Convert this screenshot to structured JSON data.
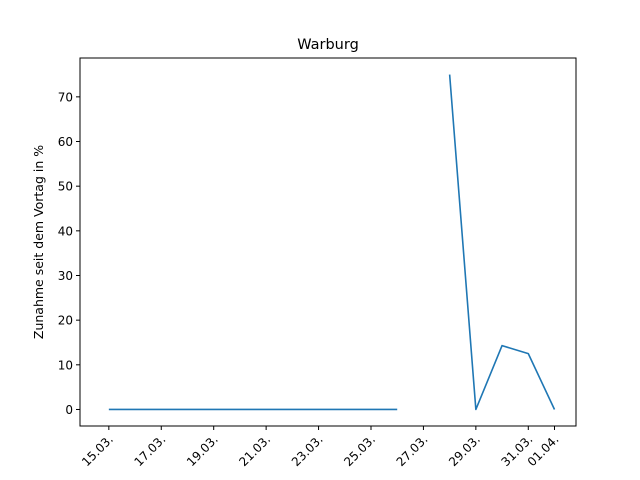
{
  "chart_data": {
    "type": "line",
    "title": "Warburg",
    "xlabel": "",
    "ylabel": "Zunahme seit dem Vortag in %",
    "x_ticks": [
      "15.03.",
      "17.03.",
      "19.03.",
      "21.03.",
      "23.03.",
      "25.03.",
      "27.03.",
      "29.03.",
      "31.03.",
      "01.04."
    ],
    "y_ticks": [
      0,
      10,
      20,
      30,
      40,
      50,
      60,
      70
    ],
    "ylim": [
      -3.7,
      78.7
    ],
    "xlim": [
      "14.03.",
      "01.04."
    ],
    "grid": false,
    "series": [
      {
        "color": "#1f77b4",
        "points": [
          {
            "x": "15.03.",
            "y": 0
          },
          {
            "x": "16.03.",
            "y": 0
          },
          {
            "x": "17.03.",
            "y": 0
          },
          {
            "x": "18.03.",
            "y": 0
          },
          {
            "x": "19.03.",
            "y": 0
          },
          {
            "x": "20.03.",
            "y": 0
          },
          {
            "x": "21.03.",
            "y": 0
          },
          {
            "x": "22.03.",
            "y": 0
          },
          {
            "x": "23.03.",
            "y": 0
          },
          {
            "x": "24.03.",
            "y": 0
          },
          {
            "x": "25.03.",
            "y": 0
          },
          {
            "x": "26.03.",
            "y": 0
          },
          {
            "x": "27.03.",
            "y": null
          },
          {
            "x": "28.03.",
            "y": 75
          },
          {
            "x": "29.03.",
            "y": 0
          },
          {
            "x": "30.03.",
            "y": 14.3
          },
          {
            "x": "31.03.",
            "y": 12.5
          },
          {
            "x": "01.04.",
            "y": 0
          }
        ]
      }
    ]
  }
}
